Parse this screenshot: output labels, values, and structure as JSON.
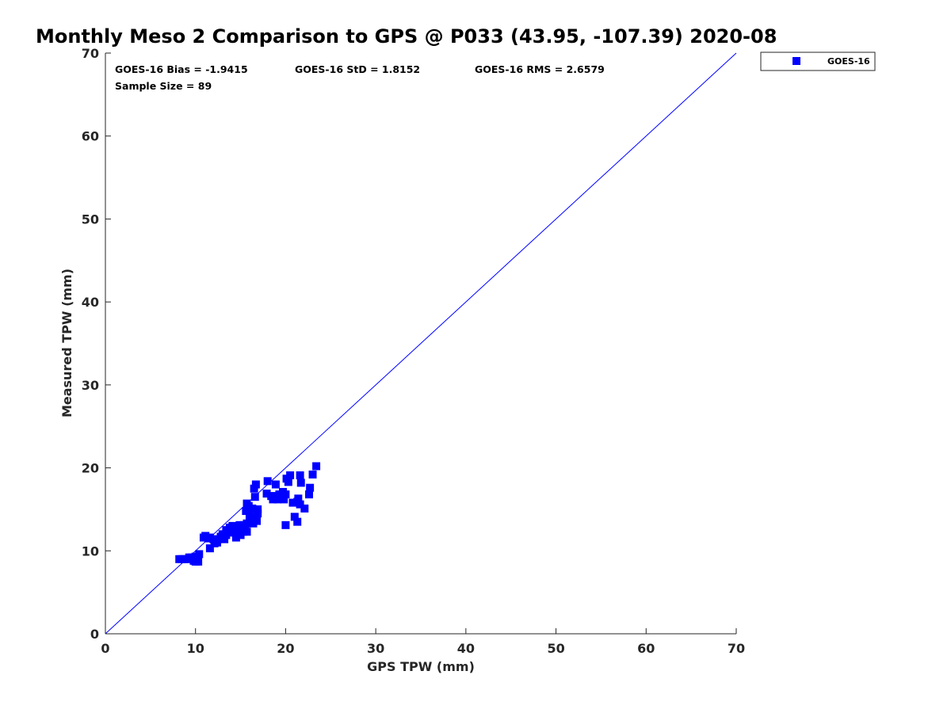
{
  "chart_data": {
    "type": "scatter",
    "title": "Monthly Meso 2 Comparison to GPS @ P033 (43.95, -107.39) 2020-08",
    "xlabel": "GPS TPW (mm)",
    "ylabel": "Measured TPW (mm)",
    "xlim": [
      0,
      70
    ],
    "ylim": [
      0,
      70
    ],
    "xticks": [
      "0",
      "10",
      "20",
      "30",
      "40",
      "50",
      "60",
      "70"
    ],
    "yticks": [
      "0",
      "10",
      "20",
      "30",
      "40",
      "50",
      "60",
      "70"
    ],
    "grid": false,
    "legend_position": "outside-top-right",
    "reference_line": "y = x",
    "stats": {
      "bias": "GOES-16 Bias = -1.9415",
      "std": "GOES-16 StD = 1.8152",
      "rms": "GOES-16 RMS = 2.6579",
      "sample": "Sample Size = 89"
    },
    "series": [
      {
        "name": "GOES-16",
        "color": "#0000ff",
        "marker": "square",
        "points": [
          [
            8.2,
            9.0
          ],
          [
            8.5,
            9.0
          ],
          [
            8.8,
            9.0
          ],
          [
            9.1,
            9.0
          ],
          [
            9.3,
            9.2
          ],
          [
            9.6,
            9.2
          ],
          [
            9.9,
            9.0
          ],
          [
            10.0,
            8.7
          ],
          [
            10.3,
            8.7
          ],
          [
            9.8,
            8.8
          ],
          [
            10.4,
            9.6
          ],
          [
            10.0,
            9.3
          ],
          [
            10.9,
            11.6
          ],
          [
            11.1,
            11.8
          ],
          [
            11.4,
            11.5
          ],
          [
            11.6,
            11.6
          ],
          [
            11.6,
            10.3
          ],
          [
            12.0,
            11.4
          ],
          [
            12.1,
            10.9
          ],
          [
            12.4,
            11.0
          ],
          [
            12.5,
            11.4
          ],
          [
            12.8,
            11.7
          ],
          [
            13.0,
            12.0
          ],
          [
            13.2,
            11.4
          ],
          [
            13.4,
            11.9
          ],
          [
            13.4,
            12.5
          ],
          [
            13.7,
            12.2
          ],
          [
            13.8,
            12.8
          ],
          [
            14.0,
            12.3
          ],
          [
            14.1,
            13.0
          ],
          [
            14.3,
            12.6
          ],
          [
            14.4,
            12.2
          ],
          [
            14.5,
            11.6
          ],
          [
            14.6,
            12.8
          ],
          [
            14.8,
            12.4
          ],
          [
            14.9,
            13.1
          ],
          [
            15.0,
            11.9
          ],
          [
            15.1,
            12.7
          ],
          [
            15.3,
            12.3
          ],
          [
            15.4,
            13.1
          ],
          [
            15.5,
            12.6
          ],
          [
            15.7,
            12.3
          ],
          [
            15.7,
            13.3
          ],
          [
            15.6,
            14.8
          ],
          [
            15.7,
            15.7
          ],
          [
            15.9,
            15.4
          ],
          [
            16.0,
            14.2
          ],
          [
            16.1,
            13.6
          ],
          [
            16.3,
            15.1
          ],
          [
            16.4,
            13.3
          ],
          [
            16.5,
            14.1
          ],
          [
            16.5,
            17.5
          ],
          [
            16.7,
            18.0
          ],
          [
            16.6,
            16.5
          ],
          [
            16.8,
            13.6
          ],
          [
            16.9,
            14.5
          ],
          [
            16.9,
            15.0
          ],
          [
            16.7,
            13.8
          ],
          [
            17.9,
            16.9
          ],
          [
            18.0,
            18.4
          ],
          [
            18.4,
            16.6
          ],
          [
            18.6,
            16.2
          ],
          [
            18.8,
            16.6
          ],
          [
            18.9,
            18.0
          ],
          [
            19.1,
            16.2
          ],
          [
            19.3,
            16.8
          ],
          [
            19.5,
            16.4
          ],
          [
            19.6,
            16.6
          ],
          [
            19.7,
            17.1
          ],
          [
            19.8,
            16.2
          ],
          [
            20.0,
            16.8
          ],
          [
            20.1,
            18.7
          ],
          [
            20.3,
            18.3
          ],
          [
            20.5,
            19.1
          ],
          [
            20.0,
            13.1
          ],
          [
            20.8,
            15.8
          ],
          [
            21.0,
            14.1
          ],
          [
            21.3,
            15.9
          ],
          [
            21.4,
            16.3
          ],
          [
            21.6,
            15.6
          ],
          [
            21.3,
            13.5
          ],
          [
            21.6,
            19.1
          ],
          [
            21.7,
            18.2
          ],
          [
            22.1,
            15.1
          ],
          [
            22.6,
            16.8
          ],
          [
            22.7,
            17.6
          ],
          [
            23.0,
            19.2
          ],
          [
            23.4,
            20.2
          ],
          [
            12.2,
            11.1
          ]
        ]
      }
    ]
  }
}
